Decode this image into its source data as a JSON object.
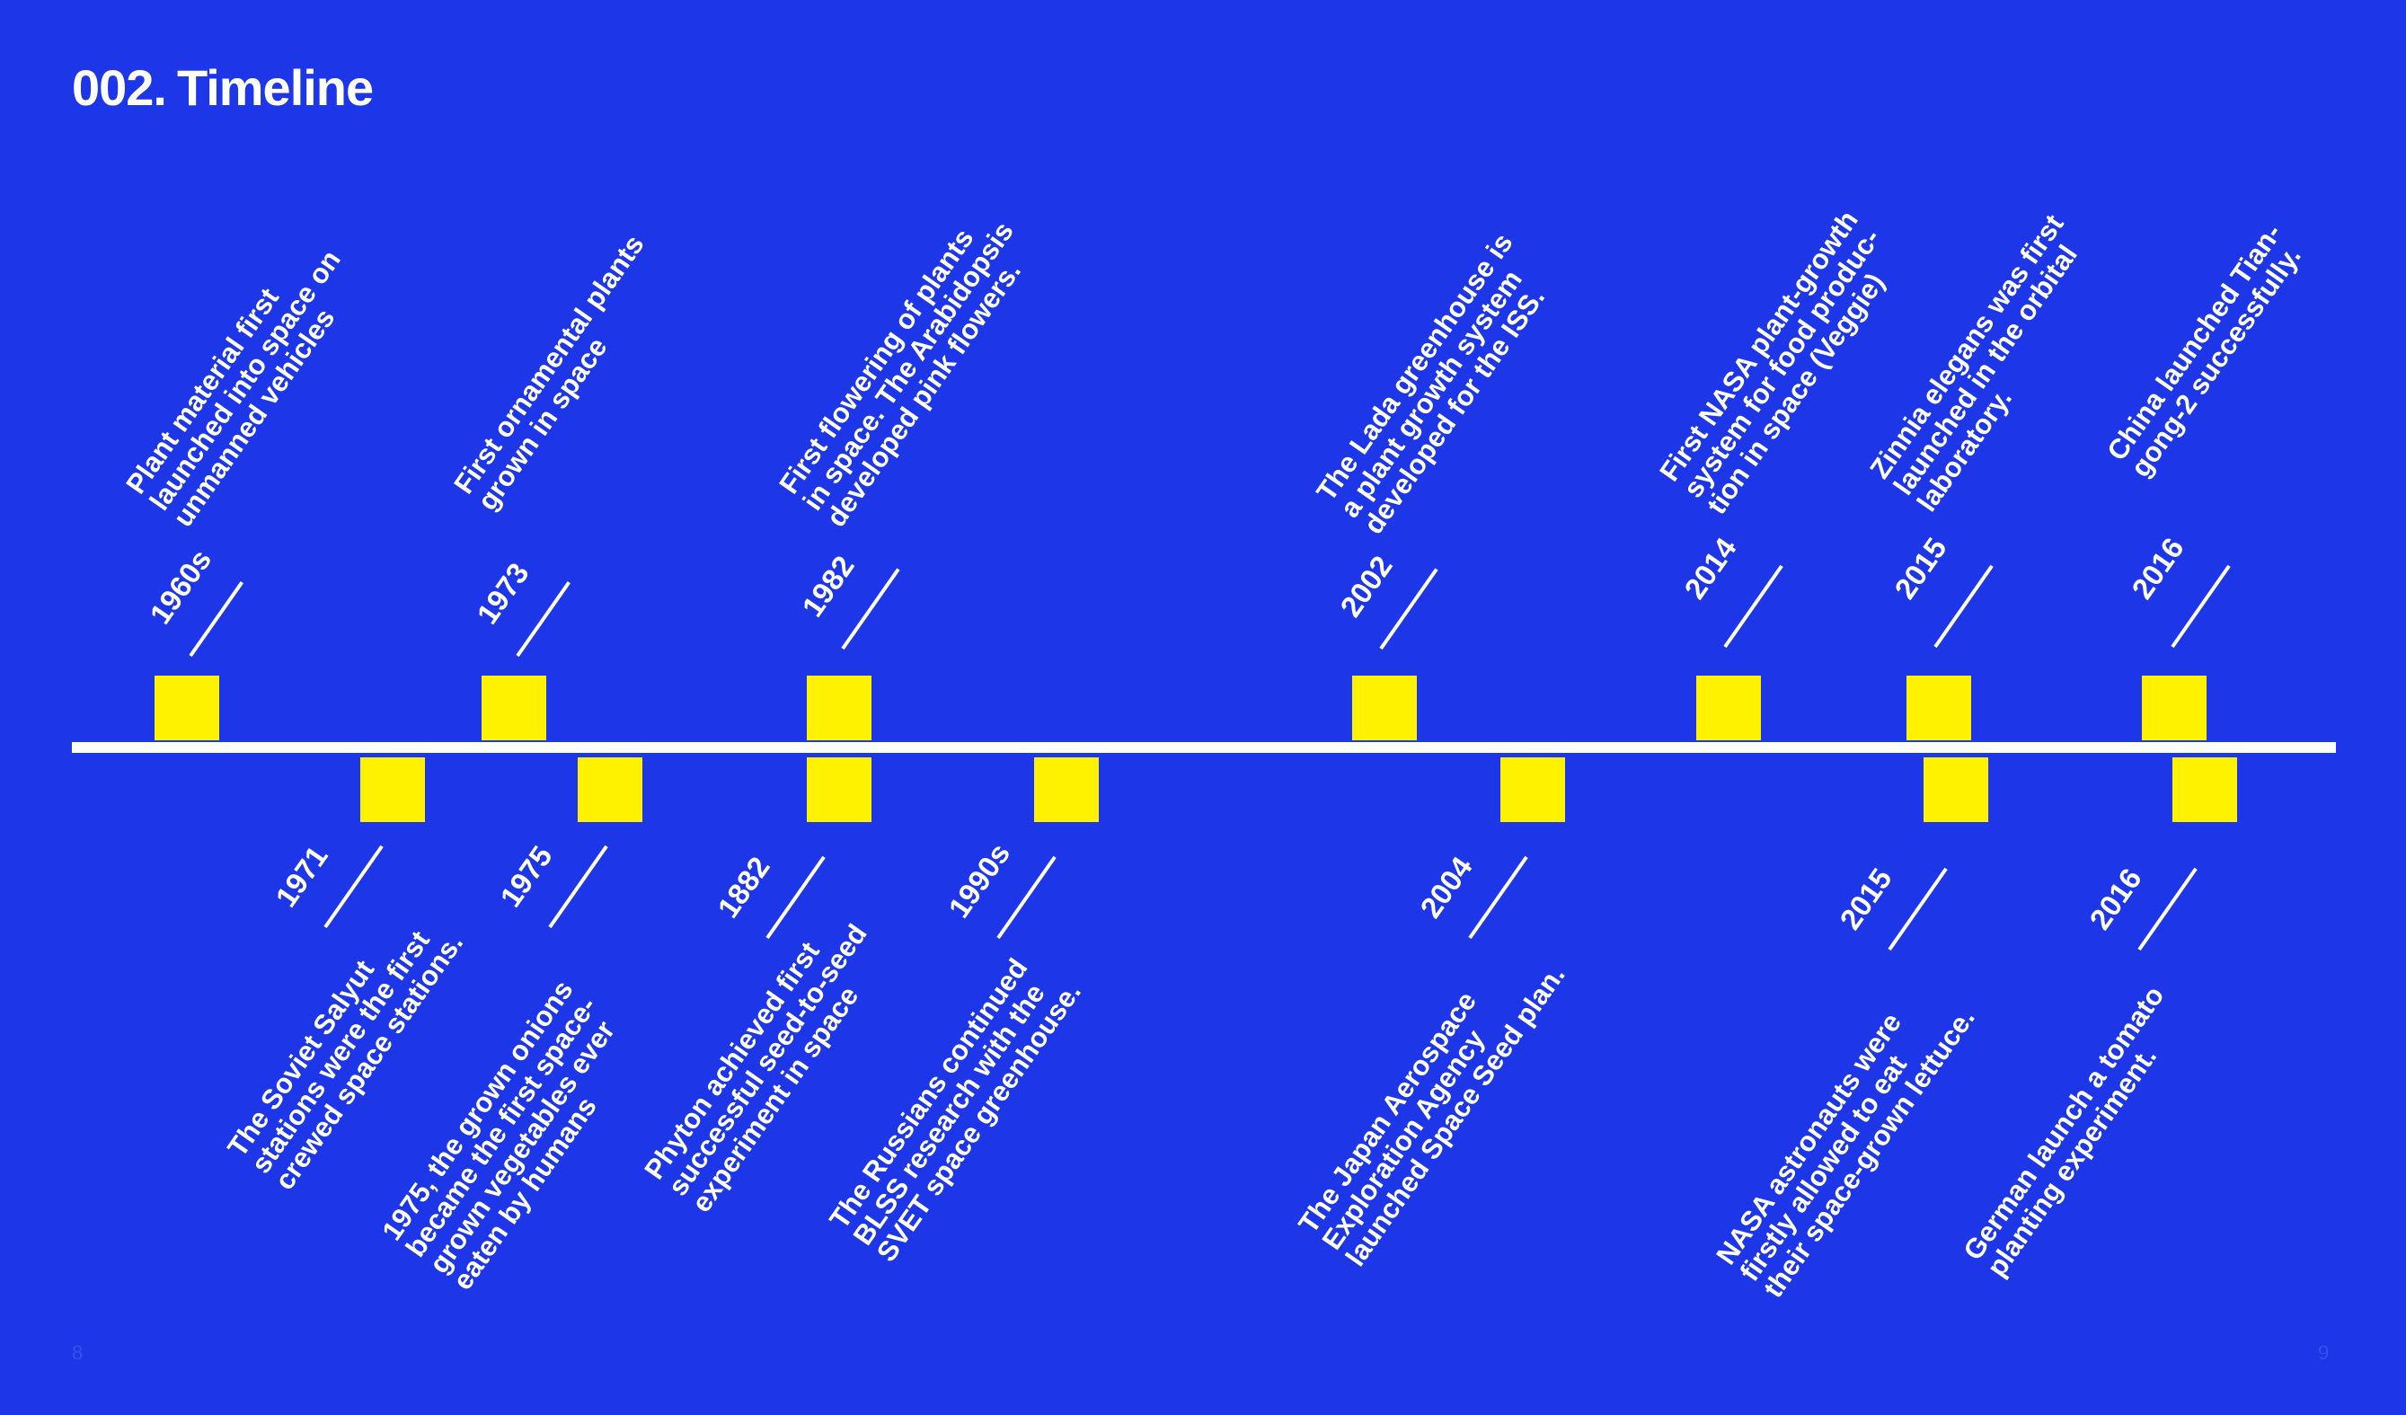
{
  "colors": {
    "background": "#1c36e8",
    "marker": "#fff200",
    "text": "#ffffff",
    "axis": "#ffffff"
  },
  "title": {
    "number": "002.",
    "text": "Timeline"
  },
  "timeline_above": [
    {
      "year": "1960s",
      "text": "Plant material first\nlaunched into space on\nunmanned vehicles"
    },
    {
      "year": "1973",
      "text": "First ornamental plants\ngrown in space"
    },
    {
      "year": "1982",
      "text": "First flowering of plants\nin space. The Arabidopsis\ndeveloped pink flowers."
    },
    {
      "year": "2002",
      "text": "The Lada greenhouse is\na plant growth system\ndeveloped for the ISS."
    },
    {
      "year": "2014",
      "text": "First NASA plant-growth\nsystem for food produc-\ntion in space (Veggie)"
    },
    {
      "year": "2015",
      "text": "Zinnia elegans was first\nlaunched in the orbital\nlaboratory."
    },
    {
      "year": "2016",
      "text": "China launched Tian-\ngong-2 successfully."
    }
  ],
  "timeline_below": [
    {
      "year": "1971",
      "text": "The Soviet Salyut\nstations were the first\ncrewed space stations."
    },
    {
      "year": "1975",
      "text": "1975, the grown onions\nbecame the first space-\ngrown vegetables ever\neaten by humans"
    },
    {
      "year": "1882",
      "text": "Phyton achieved first\nsuccessful seed-to-seed\nexperiment in space"
    },
    {
      "year": "1990s",
      "text": "The Russians continued\nBLSS research with the\nSVET space greenhouse."
    },
    {
      "year": "2004",
      "text": "The Japan Aerospace\nExploration Agency\nlaunched Space Seed plan."
    },
    {
      "year": "2015",
      "text": "NASA astronauts were\nfirstly  allowed to eat\ntheir space-grown lettuce."
    },
    {
      "year": "2016",
      "text": "German launch a tomato\nplanting experiment."
    }
  ],
  "page_numbers": {
    "left": "8",
    "right": "9"
  }
}
